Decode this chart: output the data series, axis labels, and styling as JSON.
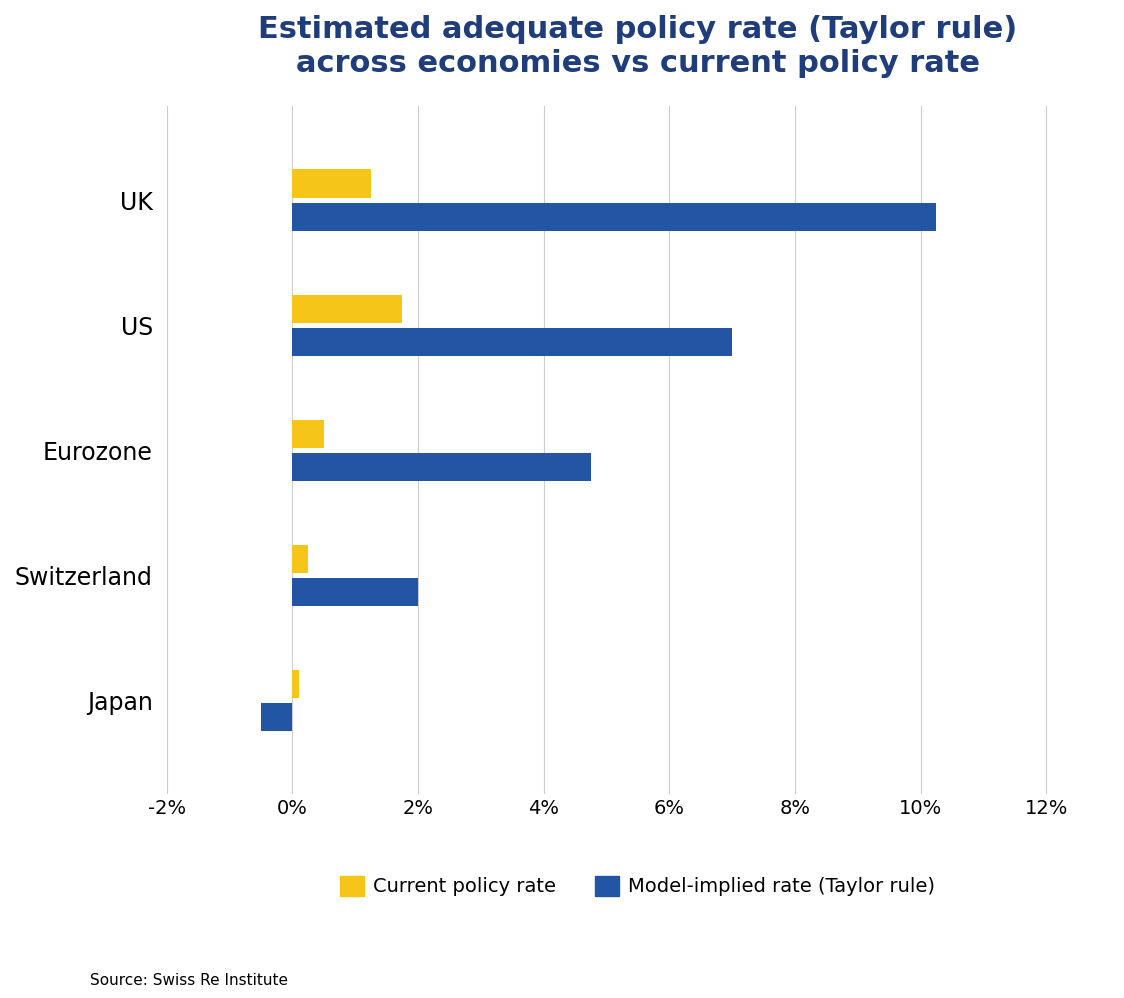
{
  "title": "Estimated adequate policy rate (Taylor rule)\nacross economies vs current policy rate",
  "categories": [
    "UK",
    "US",
    "Eurozone",
    "Switzerland",
    "Japan"
  ],
  "current_policy_rate": [
    1.25,
    1.75,
    0.5,
    0.25,
    0.1
  ],
  "model_implied_rate": [
    10.25,
    7.0,
    4.75,
    2.0,
    -0.5
  ],
  "color_current": "#F5C518",
  "color_model": "#2255A4",
  "xlim": [
    -2,
    13
  ],
  "xtick_values": [
    -2,
    0,
    2,
    4,
    6,
    8,
    10,
    12
  ],
  "xtick_labels": [
    "-2%",
    "0%",
    "2%",
    "4%",
    "6%",
    "8%",
    "10%",
    "12%"
  ],
  "title_color": "#1F3D7A",
  "title_fontsize": 22,
  "tick_fontsize": 14,
  "legend_fontsize": 14,
  "label_fontsize": 17,
  "source_text": "Source: Swiss Re Institute",
  "background_color": "#FFFFFF",
  "legend_label_current": "Current policy rate",
  "legend_label_model": "Model-implied rate (Taylor rule)"
}
